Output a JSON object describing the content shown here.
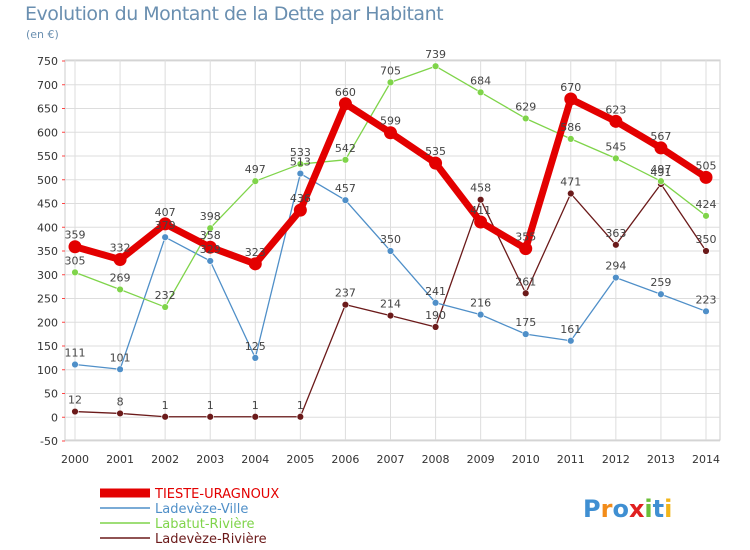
{
  "chart_data": {
    "type": "line",
    "title": "Evolution du Montant de la Dette par Habitant",
    "subtitle": "(en €)",
    "xlabel": "",
    "ylabel": "",
    "x": [
      "2000",
      "2001",
      "2002",
      "2003",
      "2004",
      "2005",
      "2006",
      "2007",
      "2008",
      "2009",
      "2010",
      "2011",
      "2012",
      "2013",
      "2014"
    ],
    "ylim": [
      -50,
      750
    ],
    "yticks": [
      -50,
      0,
      50,
      100,
      150,
      200,
      250,
      300,
      350,
      400,
      450,
      500,
      550,
      600,
      650,
      700,
      750
    ],
    "grid": true,
    "legend": "bottom-left",
    "series": [
      {
        "name": "TIESTE-URAGNOUX",
        "color": "#e30000",
        "values": [
          359,
          332,
          407,
          358,
          323,
          436,
          660,
          599,
          535,
          411,
          355,
          670,
          623,
          567,
          505
        ]
      },
      {
        "name": "Ladevèze-Ville",
        "color": "#4f8fc8",
        "values": [
          111,
          101,
          379,
          329,
          125,
          513,
          457,
          350,
          241,
          216,
          175,
          161,
          294,
          259,
          223
        ]
      },
      {
        "name": "Labatut-Rivière",
        "color": "#7fd44a",
        "values": [
          305,
          269,
          232,
          398,
          497,
          533,
          542,
          705,
          739,
          684,
          629,
          586,
          545,
          497,
          424
        ]
      },
      {
        "name": "Ladevèze-Rivière",
        "color": "#6b1a1a",
        "values": [
          12,
          8,
          1,
          1,
          1,
          1,
          237,
          214,
          190,
          458,
          261,
          471,
          363,
          491,
          350
        ]
      }
    ]
  },
  "branding": {
    "logo_text": "Proxiti"
  }
}
